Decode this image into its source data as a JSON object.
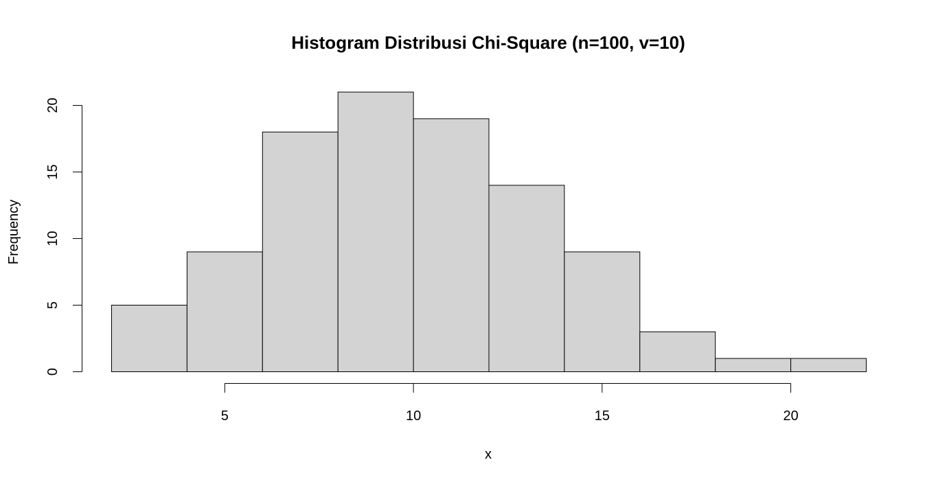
{
  "chart_data": {
    "type": "bar",
    "title": "Histogram Distribusi Chi-Square (n=100, v=10)",
    "xlabel": "x",
    "ylabel": "Frequency",
    "bin_edges": [
      2,
      4,
      6,
      8,
      10,
      12,
      14,
      16,
      18,
      20,
      22
    ],
    "values": [
      5,
      9,
      18,
      21,
      19,
      14,
      9,
      3,
      1,
      1
    ],
    "xlim": [
      2,
      22
    ],
    "ylim": [
      0,
      21
    ],
    "x_ticks": [
      5,
      10,
      15,
      20
    ],
    "y_ticks": [
      0,
      5,
      10,
      15,
      20
    ],
    "grid": false,
    "colors": {
      "bar_fill": "#d3d3d3",
      "bar_stroke": "#000000"
    }
  }
}
